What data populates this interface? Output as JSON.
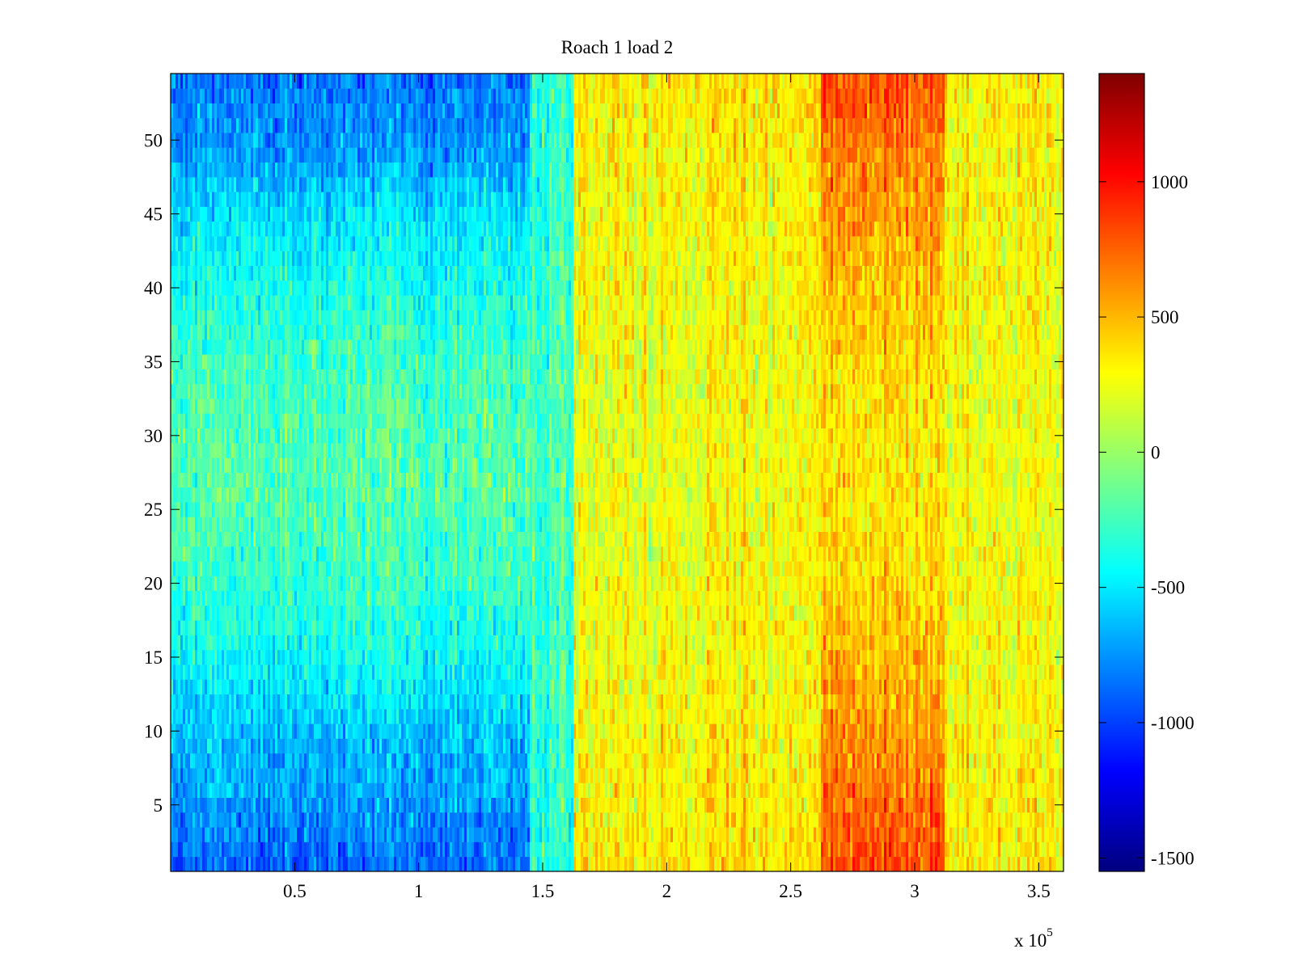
{
  "chart_data": {
    "type": "heatmap",
    "title": "Roach 1 load 2",
    "xlabel": "",
    "ylabel": "",
    "x_exponent_label": "x 10",
    "x_exponent_power": "5",
    "x_scale": 100000,
    "xlim": [
      0,
      360000
    ],
    "ylim": [
      0.5,
      54.5
    ],
    "rows": 54,
    "x_ticks": [
      50000,
      100000,
      150000,
      200000,
      250000,
      300000,
      350000
    ],
    "x_tick_labels": [
      "0.5",
      "1",
      "1.5",
      "2",
      "2.5",
      "3",
      "3.5"
    ],
    "y_ticks": [
      5,
      10,
      15,
      20,
      25,
      30,
      35,
      40,
      45,
      50
    ],
    "y_tick_labels": [
      "5",
      "10",
      "15",
      "20",
      "25",
      "30",
      "35",
      "40",
      "45",
      "50"
    ],
    "colormap": "jet",
    "clim": [
      -1550,
      1400
    ],
    "colorbar_ticks": [
      -1500,
      -1000,
      -500,
      0,
      500,
      1000
    ],
    "colorbar_tick_labels": [
      "-1500",
      "-1000",
      "-500",
      "0",
      "500",
      "1000"
    ],
    "column_segments": [
      {
        "x_range": [
          0,
          145000
        ],
        "center_value": -200,
        "edge_value": -850,
        "description_value_at_rows_10_and_49": -950
      },
      {
        "x_range": [
          145000,
          162000
        ],
        "center_value": -250,
        "edge_value": -350
      },
      {
        "x_range": [
          162000,
          262000
        ],
        "center_value": 250,
        "edge_value": 350
      },
      {
        "x_range": [
          262000,
          312000
        ],
        "center_value": 350,
        "edge_value": 800
      },
      {
        "x_range": [
          312000,
          360000
        ],
        "center_value": 250,
        "edge_value": 330
      }
    ],
    "grid": false,
    "legend": "none",
    "colorbar_position": "right"
  }
}
